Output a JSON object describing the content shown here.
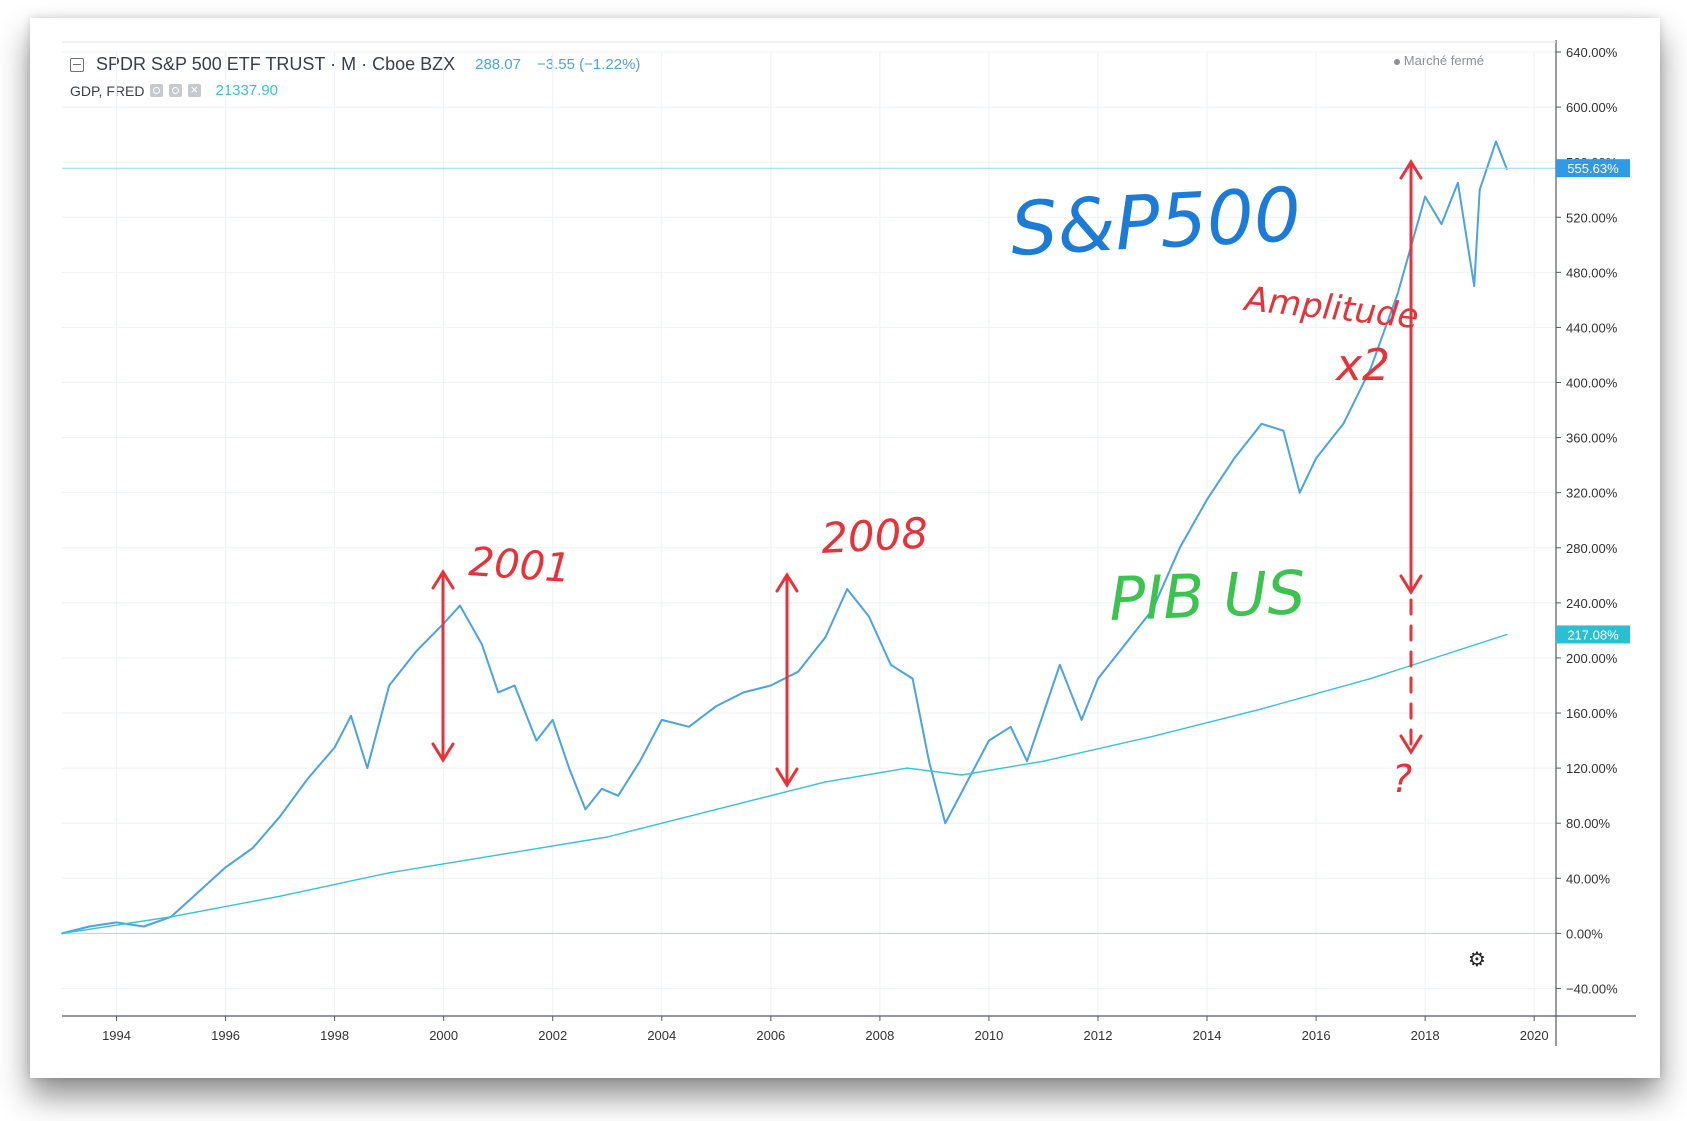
{
  "header": {
    "symbol_title": "SPDR S&P 500 ETF TRUST · M · Cboe BZX",
    "symbol_value": "288.07",
    "symbol_change": "−3.55 (−1.22%)",
    "secondary_title": "GDP, FRED",
    "secondary_value": "21337.90",
    "market_status": "Marché fermé"
  },
  "price_labels": {
    "spy_last": "555.63%",
    "gdp_last": "217.08%"
  },
  "colors": {
    "spy": "#4ba3e3",
    "gdp": "#35c3d6",
    "annotation_red": "#e8323a",
    "annotation_blue": "#1d7bd8",
    "annotation_green": "#3cc34f",
    "grid": "#eef1f5",
    "axis": "#555a63"
  },
  "annotations": {
    "sp500": "S&P500",
    "pib": "PIB US",
    "year_2001": "2001",
    "year_2008": "2008",
    "amplitude": "Amplitude",
    "x2": "x2",
    "question": "?"
  },
  "icons": {
    "collapse": "collapse-square-icon",
    "settings": "gear-icon"
  },
  "chart_data": {
    "type": "line",
    "title": "SPDR S&P 500 ETF TRUST · M · Cboe BZX",
    "y_unit": "%",
    "ylim": [
      -60,
      640
    ],
    "y_ticks": [
      "640.00%",
      "600.00%",
      "560.00%",
      "520.00%",
      "480.00%",
      "440.00%",
      "400.00%",
      "360.00%",
      "320.00%",
      "280.00%",
      "240.00%",
      "200.00%",
      "160.00%",
      "120.00%",
      "80.00%",
      "40.00%",
      "0.00%",
      "−40.00%"
    ],
    "xlim": [
      1993.0,
      2020.4
    ],
    "x_ticks": [
      "1994",
      "1996",
      "1998",
      "2000",
      "2002",
      "2004",
      "2006",
      "2008",
      "2010",
      "2012",
      "2014",
      "2016",
      "2018",
      "2020"
    ],
    "grid": true,
    "series": [
      {
        "name": "SPDR S&P 500 ETF TRUST",
        "x": [
          1993.0,
          1993.5,
          1994.0,
          1994.5,
          1995.0,
          1995.5,
          1996.0,
          1996.5,
          1997.0,
          1997.5,
          1998.0,
          1998.3,
          1998.6,
          1999.0,
          1999.5,
          2000.0,
          2000.3,
          2000.7,
          2001.0,
          2001.3,
          2001.7,
          2002.0,
          2002.3,
          2002.6,
          2002.9,
          2003.2,
          2003.6,
          2004.0,
          2004.5,
          2005.0,
          2005.5,
          2006.0,
          2006.5,
          2007.0,
          2007.4,
          2007.8,
          2008.2,
          2008.6,
          2008.9,
          2009.2,
          2009.6,
          2010.0,
          2010.4,
          2010.7,
          2011.0,
          2011.3,
          2011.7,
          2012.0,
          2012.5,
          2013.0,
          2013.5,
          2014.0,
          2014.5,
          2015.0,
          2015.4,
          2015.7,
          2016.0,
          2016.5,
          2017.0,
          2017.5,
          2018.0,
          2018.3,
          2018.6,
          2018.9,
          2019.0,
          2019.3,
          2019.5
        ],
        "values": [
          0,
          5,
          8,
          5,
          12,
          30,
          48,
          62,
          85,
          112,
          135,
          158,
          120,
          180,
          205,
          225,
          238,
          210,
          175,
          180,
          140,
          155,
          120,
          90,
          105,
          100,
          125,
          155,
          150,
          165,
          175,
          180,
          190,
          215,
          250,
          230,
          195,
          185,
          125,
          80,
          110,
          140,
          150,
          125,
          160,
          195,
          155,
          185,
          210,
          235,
          280,
          315,
          345,
          370,
          365,
          320,
          345,
          370,
          410,
          465,
          535,
          515,
          545,
          470,
          540,
          575,
          555
        ]
      },
      {
        "name": "GDP, FRED",
        "x": [
          1993.0,
          1995.0,
          1997.0,
          1999.0,
          2001.0,
          2003.0,
          2005.0,
          2007.0,
          2008.5,
          2009.5,
          2011.0,
          2013.0,
          2015.0,
          2017.0,
          2019.5
        ],
        "values": [
          0,
          12,
          27,
          44,
          57,
          70,
          90,
          110,
          120,
          115,
          125,
          143,
          163,
          185,
          217
        ]
      }
    ]
  }
}
